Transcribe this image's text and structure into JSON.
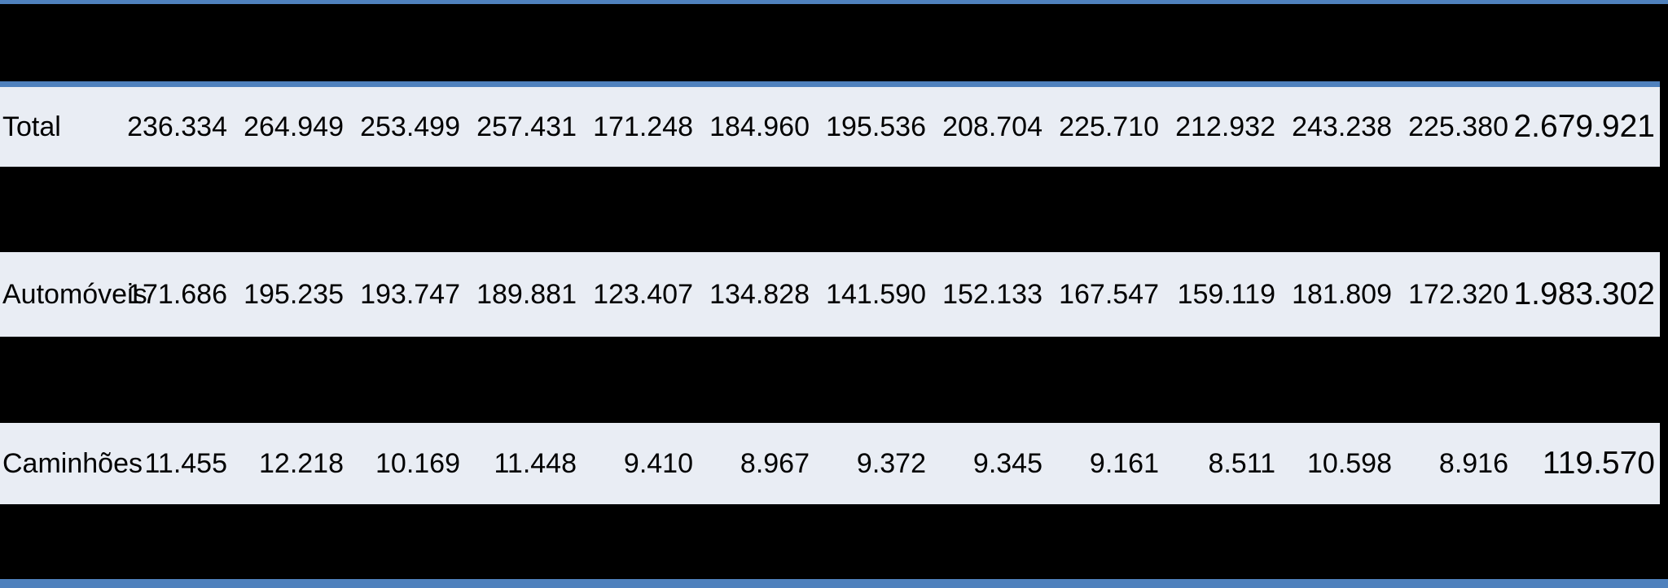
{
  "colors": {
    "accent_blue": "#4F81BD",
    "row_background": "#E9EDF4",
    "band_background": "#000000",
    "text": "#000000"
  },
  "table": {
    "rows": [
      {
        "label": "Total",
        "values": [
          "236.334",
          "264.949",
          "253.499",
          "257.431",
          "171.248",
          "184.960",
          "195.536",
          "208.704",
          "225.710",
          "212.932",
          "243.238",
          "225.380"
        ],
        "total": "2.679.921"
      },
      {
        "label": "Automóveis",
        "values": [
          "171.686",
          "195.235",
          "193.747",
          "189.881",
          "123.407",
          "134.828",
          "141.590",
          "152.133",
          "167.547",
          "159.119",
          "181.809",
          "172.320"
        ],
        "total": "1.983.302"
      },
      {
        "label": "Caminhões",
        "values": [
          "11.455",
          "12.218",
          "10.169",
          "11.448",
          "9.410",
          "8.967",
          "9.372",
          "9.345",
          "9.161",
          "8.511",
          "10.598",
          "8.916"
        ],
        "total": "119.570"
      }
    ]
  },
  "chart_data": {
    "type": "table",
    "row_labels": [
      "Total",
      "Automóveis",
      "Caminhões"
    ],
    "columns_per_row": 12,
    "series": [
      {
        "name": "Total",
        "values": [
          236334,
          264949,
          253499,
          257431,
          171248,
          184960,
          195536,
          208704,
          225710,
          212932,
          243238,
          225380
        ],
        "row_total": 2679921
      },
      {
        "name": "Automóveis",
        "values": [
          171686,
          195235,
          193747,
          189881,
          123407,
          134828,
          141590,
          152133,
          167547,
          159119,
          181809,
          172320
        ],
        "row_total": 1983302
      },
      {
        "name": "Caminhões",
        "values": [
          11455,
          12218,
          10169,
          11448,
          9410,
          8967,
          9372,
          9345,
          9161,
          8511,
          10598,
          8916
        ],
        "row_total": 119570
      }
    ],
    "layout": {
      "number_format": "pt-BR thousands separator",
      "masked_bands": "black horizontal bands between rows",
      "border_color": "#4F81BD"
    }
  }
}
